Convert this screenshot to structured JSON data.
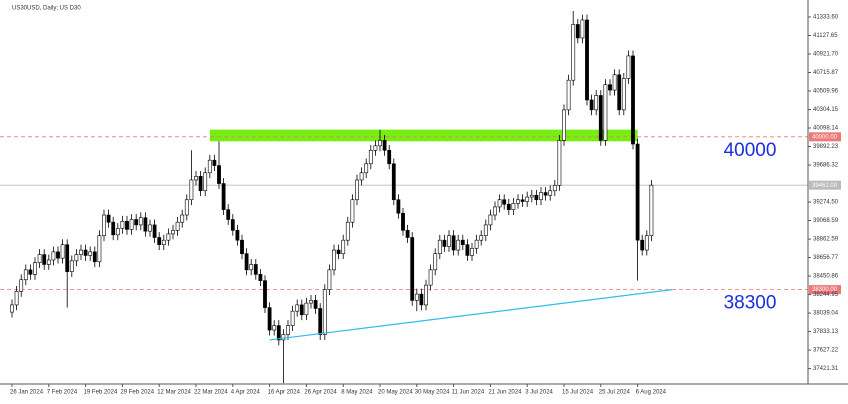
{
  "chart_data": {
    "type": "candlestick",
    "title": "US30USD, Daily: US D30",
    "colors": {
      "up": "#ffffff",
      "down": "#000000",
      "outline": "#000000",
      "trend": "#33bbee",
      "zone": "#77ee11",
      "level": "#ee7777",
      "current": "#bbbbbb",
      "annotation": "#1a2ee0"
    },
    "categories": [
      "26 Jan 2024",
      null,
      null,
      null,
      null,
      null,
      null,
      null,
      "7 Feb 2024",
      null,
      null,
      null,
      null,
      null,
      null,
      null,
      "19 Feb 2024",
      null,
      null,
      null,
      null,
      null,
      null,
      null,
      "29 Feb 2024",
      null,
      null,
      null,
      null,
      null,
      null,
      null,
      "12 Mar 2024",
      null,
      null,
      null,
      null,
      null,
      null,
      null,
      "22 Mar 2024",
      null,
      null,
      null,
      null,
      null,
      null,
      null,
      "4 Apr 2024",
      null,
      null,
      null,
      null,
      null,
      null,
      null,
      "16 Apr 2024",
      null,
      null,
      null,
      null,
      null,
      null,
      null,
      "26 Apr 2024",
      null,
      null,
      null,
      null,
      null,
      null,
      null,
      "8 May 2024",
      null,
      null,
      null,
      null,
      null,
      null,
      null,
      "20 May 2024",
      null,
      null,
      null,
      null,
      null,
      null,
      null,
      "30 May 2024",
      null,
      null,
      null,
      null,
      null,
      null,
      null,
      "11 Jun 2024",
      null,
      null,
      null,
      null,
      null,
      null,
      null,
      "21 Jun 2024",
      null,
      null,
      null,
      null,
      null,
      null,
      null,
      "3 Jul 2024",
      null,
      null,
      null,
      null,
      null,
      null,
      null,
      "15 Jul 2024",
      null,
      null,
      null,
      null,
      null,
      null,
      null,
      "25 Jul 2024",
      null,
      null,
      null,
      null,
      null,
      null,
      null,
      "6 Aug 2024",
      null,
      null,
      null
    ],
    "ohlc": [
      [
        38050,
        38190,
        37990,
        38130
      ],
      [
        38130,
        38340,
        38070,
        38280
      ],
      [
        38280,
        38470,
        38220,
        38410
      ],
      [
        38410,
        38580,
        38350,
        38520
      ],
      [
        38520,
        38580,
        38410,
        38470
      ],
      [
        38470,
        38660,
        38410,
        38600
      ],
      [
        38600,
        38750,
        38540,
        38690
      ],
      [
        38690,
        38750,
        38520,
        38580
      ],
      [
        38580,
        38690,
        38520,
        38630
      ],
      [
        38630,
        38780,
        38570,
        38720
      ],
      [
        38720,
        38780,
        38590,
        38650
      ],
      [
        38650,
        38860,
        38590,
        38800
      ],
      [
        38800,
        38860,
        38100,
        38500
      ],
      [
        38500,
        38680,
        38440,
        38620
      ],
      [
        38620,
        38750,
        38560,
        38690
      ],
      [
        38690,
        38800,
        38630,
        38740
      ],
      [
        38740,
        38800,
        38620,
        38680
      ],
      [
        38680,
        38780,
        38620,
        38720
      ],
      [
        38720,
        38780,
        38550,
        38610
      ],
      [
        38610,
        38960,
        38550,
        38900
      ],
      [
        38900,
        39190,
        38840,
        39130
      ],
      [
        39130,
        39190,
        38990,
        39050
      ],
      [
        39050,
        39110,
        38850,
        38910
      ],
      [
        38910,
        39040,
        38850,
        38980
      ],
      [
        38980,
        39120,
        38920,
        39060
      ],
      [
        39060,
        39120,
        38910,
        38970
      ],
      [
        38970,
        39140,
        38910,
        39080
      ],
      [
        39080,
        39140,
        38960,
        39020
      ],
      [
        39020,
        39160,
        38960,
        39100
      ],
      [
        39100,
        39160,
        38890,
        38950
      ],
      [
        38950,
        39080,
        38890,
        39020
      ],
      [
        39020,
        39080,
        38820,
        38880
      ],
      [
        38880,
        38940,
        38740,
        38800
      ],
      [
        38800,
        38910,
        38740,
        38850
      ],
      [
        38850,
        38980,
        38790,
        38920
      ],
      [
        38920,
        39020,
        38860,
        38960
      ],
      [
        38960,
        39110,
        38900,
        39050
      ],
      [
        39050,
        39190,
        38990,
        39130
      ],
      [
        39130,
        39360,
        39070,
        39300
      ],
      [
        39300,
        39850,
        39240,
        39520
      ],
      [
        39520,
        39620,
        39460,
        39560
      ],
      [
        39560,
        39620,
        39340,
        39400
      ],
      [
        39400,
        39660,
        39340,
        39600
      ],
      [
        39600,
        39800,
        39540,
        39740
      ],
      [
        39740,
        39800,
        39620,
        39680
      ],
      [
        39680,
        39950,
        39420,
        39480
      ],
      [
        39480,
        39540,
        39130,
        39190
      ],
      [
        39190,
        39250,
        39020,
        39080
      ],
      [
        39080,
        39140,
        38900,
        38960
      ],
      [
        38960,
        39020,
        38790,
        38850
      ],
      [
        38850,
        38910,
        38640,
        38700
      ],
      [
        38700,
        38760,
        38460,
        38520
      ],
      [
        38520,
        38640,
        38460,
        38580
      ],
      [
        38580,
        38640,
        38410,
        38470
      ],
      [
        38470,
        38530,
        38340,
        38400
      ],
      [
        38400,
        38460,
        38040,
        38100
      ],
      [
        38100,
        38160,
        37790,
        37850
      ],
      [
        37850,
        37960,
        37790,
        37900
      ],
      [
        37900,
        37960,
        37680,
        37740
      ],
      [
        37740,
        37860,
        37260,
        37800
      ],
      [
        37800,
        37960,
        37740,
        37900
      ],
      [
        37900,
        38120,
        37840,
        38060
      ],
      [
        38060,
        38190,
        38000,
        38130
      ],
      [
        38130,
        38190,
        37960,
        38020
      ],
      [
        38020,
        38210,
        37960,
        38150
      ],
      [
        38150,
        38240,
        38090,
        38180
      ],
      [
        38180,
        38240,
        38030,
        38090
      ],
      [
        38090,
        38150,
        37740,
        37800
      ],
      [
        37800,
        38360,
        37740,
        38300
      ],
      [
        38300,
        38580,
        38240,
        38520
      ],
      [
        38520,
        38800,
        38460,
        38740
      ],
      [
        38740,
        38800,
        38640,
        38700
      ],
      [
        38700,
        38910,
        38640,
        38850
      ],
      [
        38850,
        39110,
        38790,
        39050
      ],
      [
        39050,
        39360,
        38990,
        39300
      ],
      [
        39300,
        39580,
        39240,
        39520
      ],
      [
        39520,
        39660,
        39460,
        39600
      ],
      [
        39600,
        39760,
        39540,
        39700
      ],
      [
        39700,
        39910,
        39640,
        39850
      ],
      [
        39850,
        39960,
        39790,
        39900
      ],
      [
        39900,
        40080,
        39840,
        39960
      ],
      [
        39960,
        40020,
        39790,
        39850
      ],
      [
        39850,
        39910,
        39640,
        39700
      ],
      [
        39700,
        39760,
        39240,
        39300
      ],
      [
        39300,
        39360,
        39090,
        39150
      ],
      [
        39150,
        39210,
        38900,
        38960
      ],
      [
        38960,
        39020,
        38820,
        38880
      ],
      [
        38880,
        38940,
        38120,
        38180
      ],
      [
        38180,
        38310,
        38060,
        38250
      ],
      [
        38250,
        38310,
        38070,
        38130
      ],
      [
        38130,
        38410,
        38070,
        38350
      ],
      [
        38350,
        38580,
        38290,
        38520
      ],
      [
        38520,
        38760,
        38460,
        38700
      ],
      [
        38700,
        38910,
        38640,
        38850
      ],
      [
        38850,
        38910,
        38720,
        38780
      ],
      [
        38780,
        38960,
        38720,
        38900
      ],
      [
        38900,
        38960,
        38680,
        38740
      ],
      [
        38740,
        38910,
        38680,
        38850
      ],
      [
        38850,
        38910,
        38740,
        38800
      ],
      [
        38800,
        38860,
        38620,
        38680
      ],
      [
        38680,
        38820,
        38620,
        38760
      ],
      [
        38760,
        38910,
        38700,
        38850
      ],
      [
        38850,
        38960,
        38790,
        38900
      ],
      [
        38900,
        39080,
        38840,
        39020
      ],
      [
        39020,
        39190,
        38960,
        39130
      ],
      [
        39130,
        39280,
        39070,
        39220
      ],
      [
        39220,
        39360,
        39160,
        39300
      ],
      [
        39300,
        39360,
        39190,
        39250
      ],
      [
        39250,
        39310,
        39130,
        39190
      ],
      [
        39190,
        39320,
        39130,
        39260
      ],
      [
        39260,
        39360,
        39200,
        39300
      ],
      [
        39300,
        39360,
        39220,
        39280
      ],
      [
        39280,
        39390,
        39220,
        39330
      ],
      [
        39330,
        39410,
        39270,
        39350
      ],
      [
        39350,
        39410,
        39240,
        39300
      ],
      [
        39300,
        39440,
        39240,
        39380
      ],
      [
        39380,
        39440,
        39290,
        39350
      ],
      [
        39350,
        39460,
        39290,
        39400
      ],
      [
        39400,
        39520,
        39340,
        39460
      ],
      [
        39460,
        40020,
        39400,
        39960
      ],
      [
        39960,
        40360,
        39900,
        40300
      ],
      [
        40300,
        40690,
        40240,
        40630
      ],
      [
        40630,
        41400,
        40570,
        41250
      ],
      [
        41250,
        41310,
        41040,
        41100
      ],
      [
        41100,
        41360,
        41040,
        41300
      ],
      [
        41300,
        41360,
        40350,
        40410
      ],
      [
        40410,
        40470,
        40240,
        40300
      ],
      [
        40300,
        40520,
        40240,
        40460
      ],
      [
        40460,
        40520,
        39900,
        39960
      ],
      [
        39960,
        40640,
        39900,
        40580
      ],
      [
        40580,
        40640,
        40460,
        40520
      ],
      [
        40520,
        40750,
        40460,
        40690
      ],
      [
        40690,
        40750,
        40240,
        40300
      ],
      [
        40300,
        40710,
        40240,
        40650
      ],
      [
        40650,
        40960,
        40590,
        40900
      ],
      [
        40900,
        40960,
        39860,
        39920
      ],
      [
        39920,
        39980,
        38400,
        38850
      ],
      [
        38850,
        38910,
        38680,
        38740
      ],
      [
        38740,
        38960,
        38680,
        38900
      ],
      [
        38900,
        39520,
        38840,
        39462
      ]
    ],
    "ylim": [
      37250,
      41500
    ],
    "yticks": [
      {
        "value": 41333.6,
        "label": "41333.60"
      },
      41127.65,
      {
        "value": 40921.7,
        "label": "40921.70"
      },
      40715.87,
      40509.96,
      40304.15,
      40098.14,
      39892.23,
      39686.32,
      {
        "value": 39274.5,
        "label": "39274.50"
      },
      39068.59,
      38862.59,
      38656.77,
      38450.86,
      38244.95,
      38039.04,
      37833.13,
      37627.22,
      37421.31
    ],
    "levels": [
      {
        "value": 40000,
        "label": "40000.00",
        "dashed": true
      },
      {
        "value": 38300,
        "label": "38300.00",
        "dashed": true
      }
    ],
    "current": {
      "value": 39462,
      "label": "39462.00"
    },
    "annotations": [
      {
        "text": "40000",
        "value": 40000
      },
      {
        "text": "38300",
        "value": 38300
      }
    ],
    "trendline": {
      "x": [
        56,
        143.5
      ],
      "y": [
        37740,
        38300
      ]
    },
    "zone": {
      "start": 43,
      "end": 136,
      "low": 39950,
      "high": 40080
    }
  }
}
